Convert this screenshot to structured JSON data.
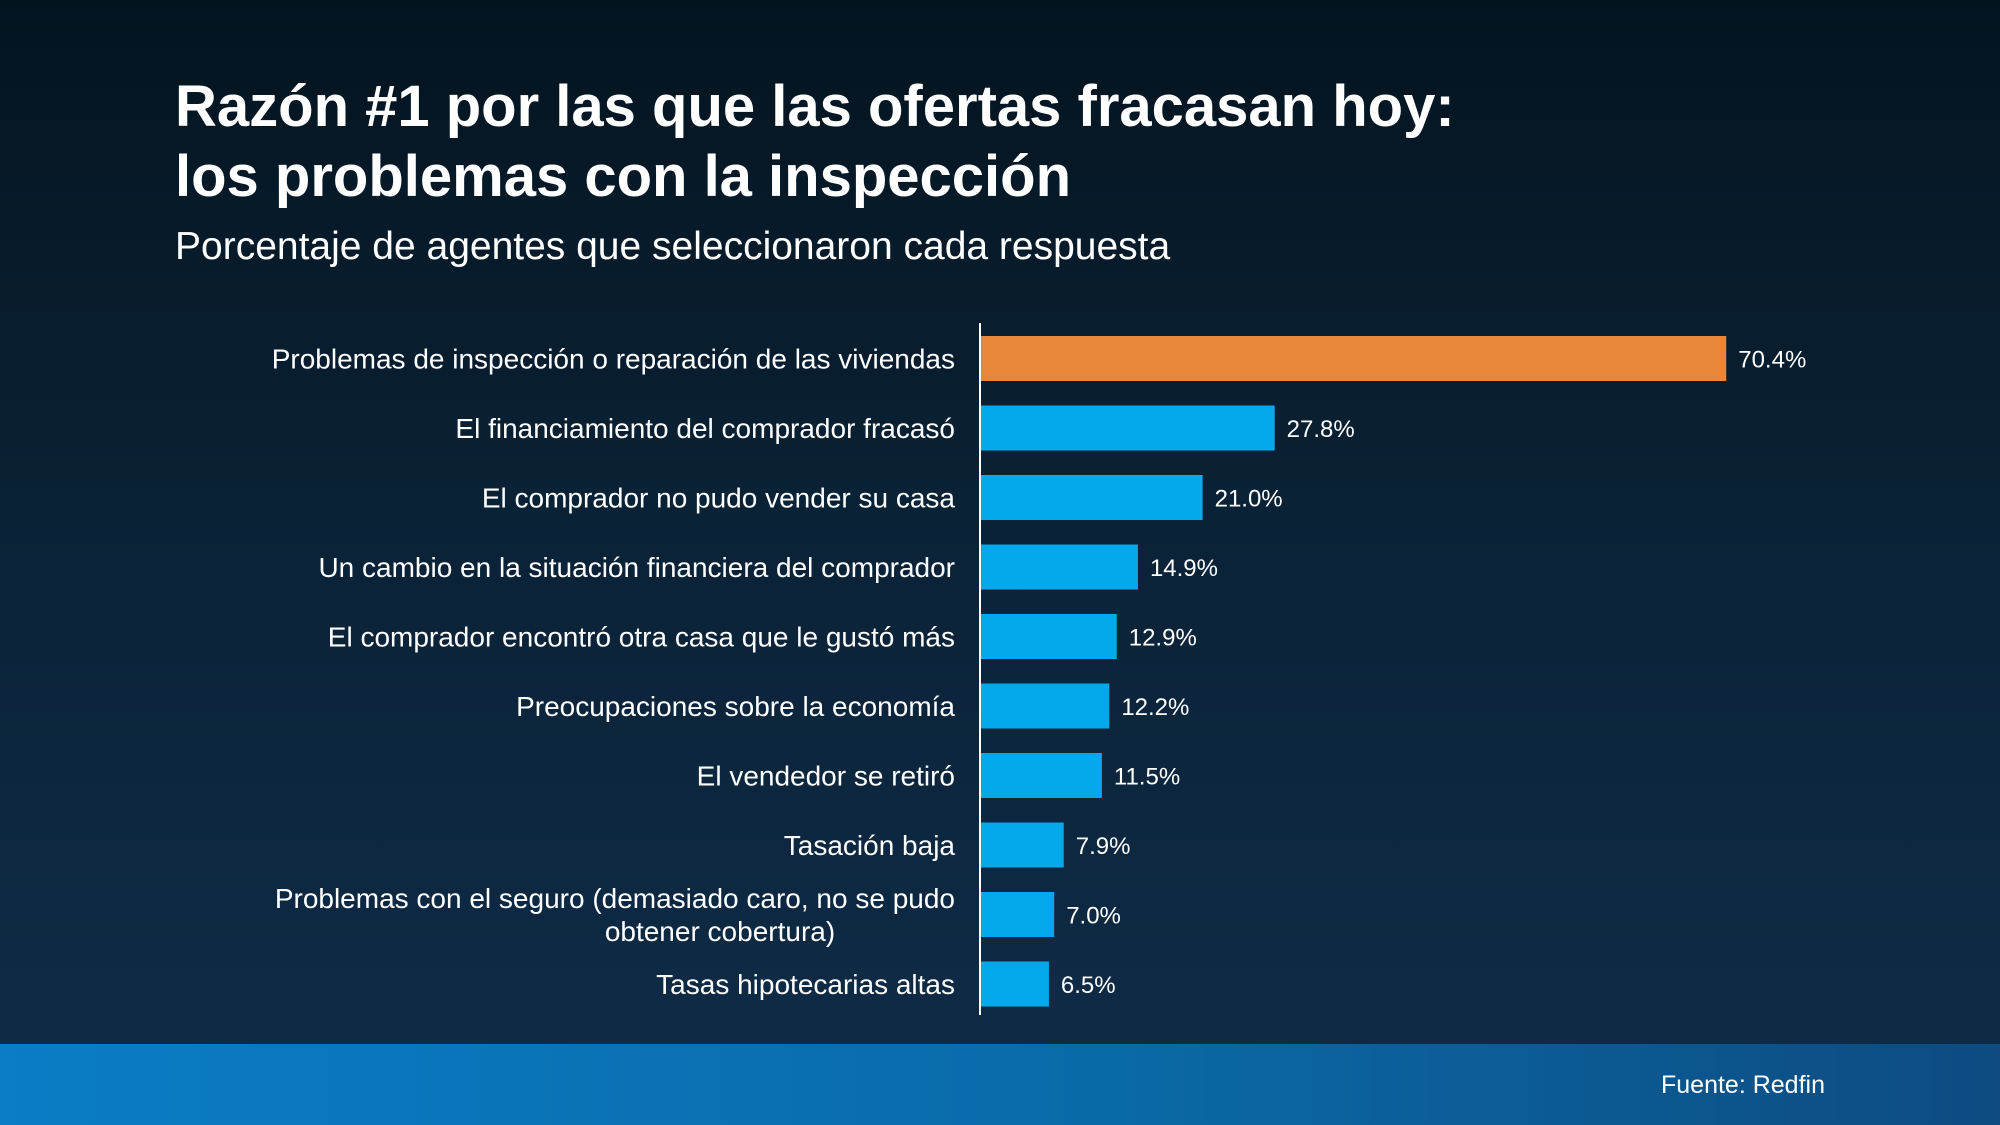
{
  "slide": {
    "title_line1": "Razón #1 por las que las ofertas fracasan hoy:",
    "title_line2": "los problemas con la inspección",
    "subtitle": "Porcentaje de agentes que seleccionaron cada respuesta",
    "source": "Fuente: Redfin"
  },
  "colors": {
    "highlight_bar": "#e8863a",
    "bar": "#04a9eb",
    "axis_line": "#ffffff"
  },
  "chart_data": {
    "type": "bar",
    "orientation": "horizontal",
    "title": "",
    "xlabel": "",
    "ylabel": "",
    "categories": [
      [
        "Problemas de inspección o reparación de las viviendas"
      ],
      [
        "El financiamiento del comprador fracasó"
      ],
      [
        "El comprador no pudo vender su casa"
      ],
      [
        "Un cambio en la situación financiera del comprador"
      ],
      [
        "El comprador encontró otra casa que le gustó más"
      ],
      [
        "Preocupaciones sobre la economía"
      ],
      [
        "El vendedor se retiró"
      ],
      [
        "Tasación baja"
      ],
      [
        "Problemas con el seguro (demasiado caro, no se pudo",
        "obtener cobertura)"
      ],
      [
        "Tasas hipotecarias altas"
      ]
    ],
    "values": [
      70.4,
      27.8,
      21.0,
      14.9,
      12.9,
      12.2,
      11.5,
      7.9,
      7.0,
      6.5
    ],
    "value_labels": [
      "70.4%",
      "27.8%",
      "21.0%",
      "14.9%",
      "12.9%",
      "12.2%",
      "11.5%",
      "7.9%",
      "7.0%",
      "6.5%"
    ],
    "highlight_index": 0,
    "xlim": [
      0,
      100
    ],
    "grid": false,
    "legend": "none"
  }
}
